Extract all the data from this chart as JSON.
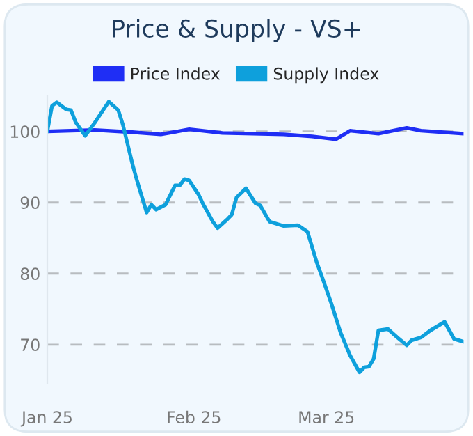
{
  "chart_data": {
    "type": "line",
    "title": "Price & Supply - VS+",
    "xlim": [
      "2025-01-01",
      "2025-03-30"
    ],
    "xticks": [
      {
        "value": "2025-01-01",
        "label": "Jan 25"
      },
      {
        "value": "2025-02-01",
        "label": "Feb 25"
      },
      {
        "value": "2025-03-01",
        "label": "Mar 25"
      }
    ],
    "ylim": [
      64.5,
      105
    ],
    "yticks": [
      70,
      80,
      90,
      100
    ],
    "grid": "y",
    "legend": "top",
    "line_style": "solid",
    "marker": "none",
    "series": [
      {
        "name": "Price Index",
        "color": "#1f2ef5",
        "x": [
          "2025-01-01",
          "2025-01-11",
          "2025-01-19",
          "2025-01-25",
          "2025-01-31",
          "2025-02-07",
          "2025-02-20",
          "2025-02-26",
          "2025-03-03",
          "2025-03-06",
          "2025-03-12",
          "2025-03-18",
          "2025-03-21",
          "2025-03-30"
        ],
        "values": [
          100,
          100.2,
          99.9,
          99.6,
          100.3,
          99.8,
          99.6,
          99.3,
          98.9,
          100.1,
          99.7,
          100.5,
          100.1,
          99.7
        ]
      },
      {
        "name": "Supply Index",
        "color": "#0ea0dc",
        "x": [
          "2025-01-01",
          "2025-01-02",
          "2025-01-03",
          "2025-01-05",
          "2025-01-06",
          "2025-01-07",
          "2025-01-09",
          "2025-01-11",
          "2025-01-14",
          "2025-01-16",
          "2025-01-17",
          "2025-01-19",
          "2025-01-20",
          "2025-01-22",
          "2025-01-23",
          "2025-01-24",
          "2025-01-26",
          "2025-01-28",
          "2025-01-29",
          "2025-01-30",
          "2025-01-31",
          "2025-02-02",
          "2025-02-03",
          "2025-02-05",
          "2025-02-06",
          "2025-02-08",
          "2025-02-09",
          "2025-02-10",
          "2025-02-12",
          "2025-02-14",
          "2025-02-15",
          "2025-02-17",
          "2025-02-20",
          "2025-02-23",
          "2025-02-25",
          "2025-02-27",
          "2025-02-28",
          "2025-03-02",
          "2025-03-04",
          "2025-03-06",
          "2025-03-08",
          "2025-03-09",
          "2025-03-10",
          "2025-03-11",
          "2025-03-12",
          "2025-03-14",
          "2025-03-16",
          "2025-03-18",
          "2025-03-19",
          "2025-03-21",
          "2025-03-23",
          "2025-03-26",
          "2025-03-28",
          "2025-03-30"
        ],
        "values": [
          100,
          103.6,
          104.1,
          103.1,
          103,
          101.3,
          99.4,
          101.2,
          104.2,
          103,
          100.9,
          95.4,
          93,
          88.6,
          89.7,
          89,
          89.7,
          92.4,
          92.4,
          93.3,
          93.1,
          91.1,
          89.7,
          87.3,
          86.4,
          87.6,
          88.3,
          90.7,
          92,
          89.9,
          89.6,
          87.3,
          86.7,
          86.8,
          85.9,
          81.5,
          79.7,
          75.9,
          71.7,
          68.5,
          66.1,
          66.8,
          66.9,
          68,
          72,
          72.2,
          71,
          69.9,
          70.6,
          71,
          72,
          73.2,
          70.8,
          70.4
        ]
      }
    ]
  }
}
